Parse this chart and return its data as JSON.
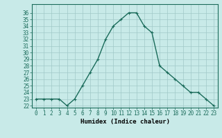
{
  "x": [
    0,
    1,
    2,
    3,
    4,
    5,
    6,
    7,
    8,
    9,
    10,
    11,
    12,
    13,
    14,
    15,
    16,
    17,
    18,
    19,
    20,
    21,
    22,
    23
  ],
  "y": [
    23,
    23,
    23,
    23,
    22,
    23,
    25,
    27,
    29,
    32,
    34,
    35,
    36,
    36,
    34,
    33,
    28,
    27,
    26,
    25,
    24,
    24,
    23,
    22
  ],
  "line_color": "#1a6b5a",
  "marker": "+",
  "bg_color": "#c8eae8",
  "grid_color": "#a0c8c8",
  "xlabel": "Humidex (Indice chaleur)",
  "ylim_min": 22,
  "ylim_max": 37,
  "xlim_min": -0.5,
  "xlim_max": 23.5,
  "yticks": [
    22,
    23,
    24,
    25,
    26,
    27,
    28,
    29,
    30,
    31,
    32,
    33,
    34,
    35,
    36
  ],
  "xticks": [
    0,
    1,
    2,
    3,
    4,
    5,
    6,
    7,
    8,
    9,
    10,
    11,
    12,
    13,
    14,
    15,
    16,
    17,
    18,
    19,
    20,
    21,
    22,
    23
  ],
  "tick_fontsize": 5.5,
  "xlabel_fontsize": 6.5,
  "line_width": 1.0,
  "marker_size": 3.5
}
